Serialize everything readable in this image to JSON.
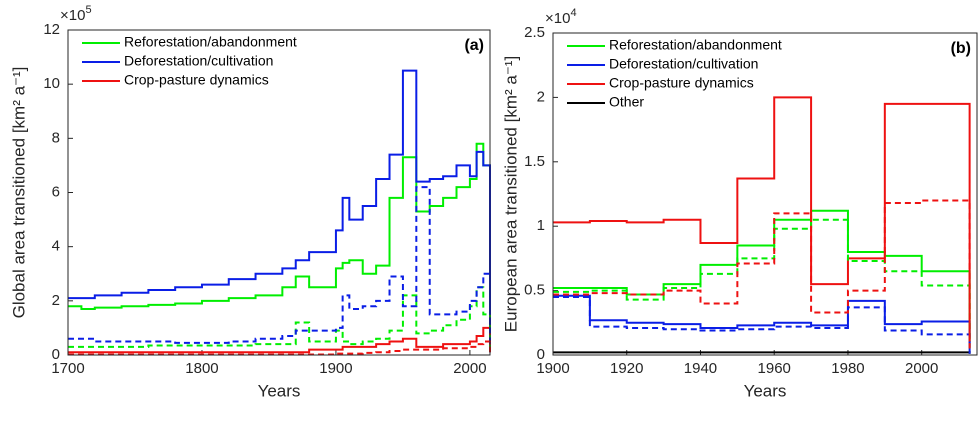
{
  "chart_data": [
    {
      "type": "line",
      "drawstyle": "steps-post",
      "panel_label": "(a)",
      "multiplier": {
        "base": "×10",
        "exponent": "5"
      },
      "x_label": "Years",
      "y_label": "Global area transitioned [km² a⁻¹]",
      "xlim": [
        1700,
        2015
      ],
      "xticks": [
        1700,
        1800,
        1900,
        2000
      ],
      "ylim": [
        0,
        12
      ],
      "yticks": [
        0,
        2,
        4,
        6,
        8,
        10,
        12
      ],
      "legend": "upper left",
      "x": [
        1700,
        1710,
        1720,
        1740,
        1760,
        1780,
        1800,
        1820,
        1840,
        1860,
        1870,
        1880,
        1900,
        1905,
        1910,
        1920,
        1930,
        1940,
        1950,
        1960,
        1970,
        1980,
        1990,
        2000,
        2005,
        2010,
        2015
      ],
      "series": [
        {
          "name": "Reforestation/abandonment",
          "color": "#00ee00",
          "dash": false,
          "values": [
            1.8,
            1.7,
            1.75,
            1.8,
            1.85,
            1.9,
            2.0,
            2.1,
            2.2,
            2.5,
            2.9,
            2.5,
            3.2,
            3.4,
            3.5,
            3.0,
            3.3,
            5.8,
            7.3,
            5.3,
            5.5,
            5.8,
            6.2,
            6.5,
            7.8,
            7.0,
            0.3
          ]
        },
        {
          "name": "Deforestation/cultivation",
          "color": "#0a1ee6",
          "dash": false,
          "values": [
            2.1,
            2.1,
            2.2,
            2.3,
            2.4,
            2.5,
            2.6,
            2.8,
            3.0,
            3.2,
            3.5,
            3.8,
            4.6,
            5.8,
            5.0,
            5.5,
            6.5,
            7.4,
            10.5,
            6.4,
            6.5,
            6.6,
            7.0,
            6.6,
            7.5,
            7.0,
            0.2
          ]
        },
        {
          "name": "Crop-pasture dynamics",
          "color": "#ee1111",
          "dash": false,
          "values": [
            0.1,
            0.1,
            0.1,
            0.1,
            0.1,
            0.1,
            0.1,
            0.1,
            0.1,
            0.1,
            0.1,
            0.2,
            0.2,
            0.3,
            0.3,
            0.3,
            0.4,
            0.5,
            0.6,
            0.3,
            0.3,
            0.4,
            0.4,
            0.5,
            0.7,
            1.0,
            0.2
          ]
        },
        {
          "color": "#00ee00",
          "dash": true,
          "values": [
            0.3,
            0.3,
            0.3,
            0.3,
            0.35,
            0.35,
            0.35,
            0.35,
            0.4,
            0.4,
            1.2,
            0.5,
            0.9,
            0.5,
            0.4,
            0.5,
            0.6,
            0.9,
            2.2,
            0.8,
            0.9,
            1.1,
            1.3,
            1.8,
            2.5,
            1.5,
            0.1
          ]
        },
        {
          "color": "#0a1ee6",
          "dash": true,
          "values": [
            0.6,
            0.6,
            0.5,
            0.5,
            0.5,
            0.45,
            0.45,
            0.5,
            0.6,
            0.7,
            0.9,
            0.9,
            1.0,
            2.2,
            1.7,
            1.8,
            2.0,
            2.9,
            1.8,
            6.2,
            1.5,
            1.5,
            1.6,
            2.0,
            2.5,
            3.0,
            0.1
          ]
        },
        {
          "color": "#ee1111",
          "dash": true,
          "values": [
            0.02,
            0.02,
            0.02,
            0.02,
            0.02,
            0.02,
            0.02,
            0.02,
            0.02,
            0.02,
            0.02,
            0.02,
            0.05,
            0.05,
            0.05,
            0.08,
            0.1,
            0.15,
            0.2,
            0.2,
            0.2,
            0.25,
            0.25,
            0.3,
            0.4,
            0.5,
            0.1
          ]
        }
      ]
    },
    {
      "type": "line",
      "drawstyle": "steps-post",
      "panel_label": "(b)",
      "multiplier": {
        "base": "×10",
        "exponent": "4"
      },
      "x_label": "Years",
      "y_label": "European area transitioned [km² a⁻¹]",
      "xlim": [
        1900,
        2015
      ],
      "xticks": [
        1900,
        1920,
        1940,
        1960,
        1980,
        2000
      ],
      "ylim": [
        0,
        2.5
      ],
      "yticks": [
        0,
        0.5,
        1,
        1.5,
        2,
        2.5
      ],
      "legend": "upper left",
      "x": [
        1900,
        1910,
        1920,
        1930,
        1940,
        1950,
        1960,
        1970,
        1980,
        1990,
        2000,
        2013
      ],
      "series": [
        {
          "name": "Reforestation/abandonment",
          "color": "#00ee00",
          "dash": false,
          "values": [
            0.52,
            0.52,
            0.47,
            0.55,
            0.7,
            0.85,
            1.05,
            1.12,
            0.8,
            0.77,
            0.65,
            0.1
          ]
        },
        {
          "name": "Deforestation/cultivation",
          "color": "#0a1ee6",
          "dash": false,
          "values": [
            0.46,
            0.27,
            0.25,
            0.24,
            0.21,
            0.23,
            0.25,
            0.23,
            0.42,
            0.24,
            0.26,
            0.02
          ]
        },
        {
          "name": "Crop-pasture dynamics",
          "color": "#ee1111",
          "dash": false,
          "values": [
            1.03,
            1.04,
            1.03,
            1.05,
            0.87,
            1.37,
            2.0,
            0.55,
            0.75,
            1.95,
            1.95,
            0.1
          ]
        },
        {
          "name": "Other",
          "color": "#000000",
          "dash": false,
          "values": [
            0.02,
            0.02,
            0.02,
            0.02,
            0.02,
            0.02,
            0.02,
            0.02,
            0.02,
            0.02,
            0.02,
            0.01
          ]
        },
        {
          "color": "#00ee00",
          "dash": true,
          "values": [
            0.49,
            0.5,
            0.43,
            0.52,
            0.63,
            0.75,
            0.98,
            1.05,
            0.73,
            0.65,
            0.54,
            0.05
          ]
        },
        {
          "color": "#0a1ee6",
          "dash": true,
          "values": [
            0.45,
            0.22,
            0.21,
            0.2,
            0.19,
            0.2,
            0.22,
            0.21,
            0.37,
            0.19,
            0.16,
            0.01
          ]
        },
        {
          "color": "#ee1111",
          "dash": true,
          "values": [
            0.47,
            0.48,
            0.47,
            0.5,
            0.4,
            0.71,
            1.1,
            0.33,
            0.5,
            1.18,
            1.2,
            0.05
          ]
        }
      ]
    }
  ]
}
